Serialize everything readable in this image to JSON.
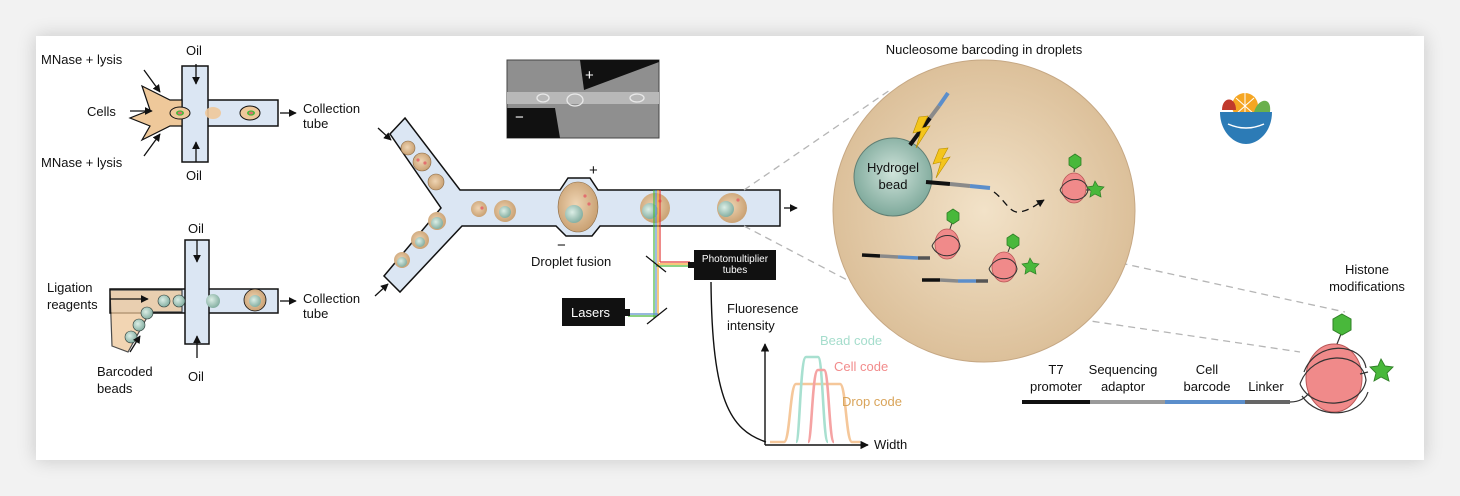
{
  "colors": {
    "channel": "#dbe6f3",
    "cell_fill": "#eec89a",
    "droplet": "#d9b58c",
    "bead": "#9cc0b4",
    "sphere": "#e8cfae",
    "nucleosome": "#f08a8a",
    "histone_mark": "#49b83b",
    "bolt": "#f4c51c",
    "bead_code": "#9fdccb",
    "cell_code": "#f28b8b",
    "drop_code": "#d9a45a",
    "seg_t7": "#111111",
    "seg_adaptor": "#9a9a9a",
    "seg_barcode": "#5b8ecb",
    "seg_linker": "#666666"
  },
  "top_device": {
    "inlet_top": "MNase + lysis",
    "inlet_bottom": "MNase + lysis",
    "inlet_middle": "Cells",
    "oil_top": "Oil",
    "oil_bottom": "Oil",
    "outlet": "Collection\ntube"
  },
  "bottom_device": {
    "inlet_left": "Ligation\nreagents",
    "inlet_beads": "Barcoded\nbeads",
    "oil_top": "Oil",
    "oil_bottom": "Oil",
    "outlet": "Collection\ntube"
  },
  "fusion": {
    "label": "Droplet fusion",
    "plus": "+",
    "minus": "−",
    "micrograph_plus": "+",
    "micrograph_minus": "−"
  },
  "detection": {
    "lasers": "Lasers",
    "pmt": "Photomultiplier\ntubes",
    "y_axis": "Fluoresence\nintensity",
    "x_axis": "Width",
    "bead_code": "Bead code",
    "cell_code": "Cell code",
    "drop_code": "Drop code"
  },
  "barcoding": {
    "title": "Nucleosome barcoding in droplets",
    "hydrogel": "Hydrogel\nbead"
  },
  "construct": {
    "t7": "T7\npromoter",
    "adaptor": "Sequencing\nadaptor",
    "barcode": "Cell\nbarcode",
    "linker": "Linker",
    "histone": "Histone\nmodifications"
  }
}
